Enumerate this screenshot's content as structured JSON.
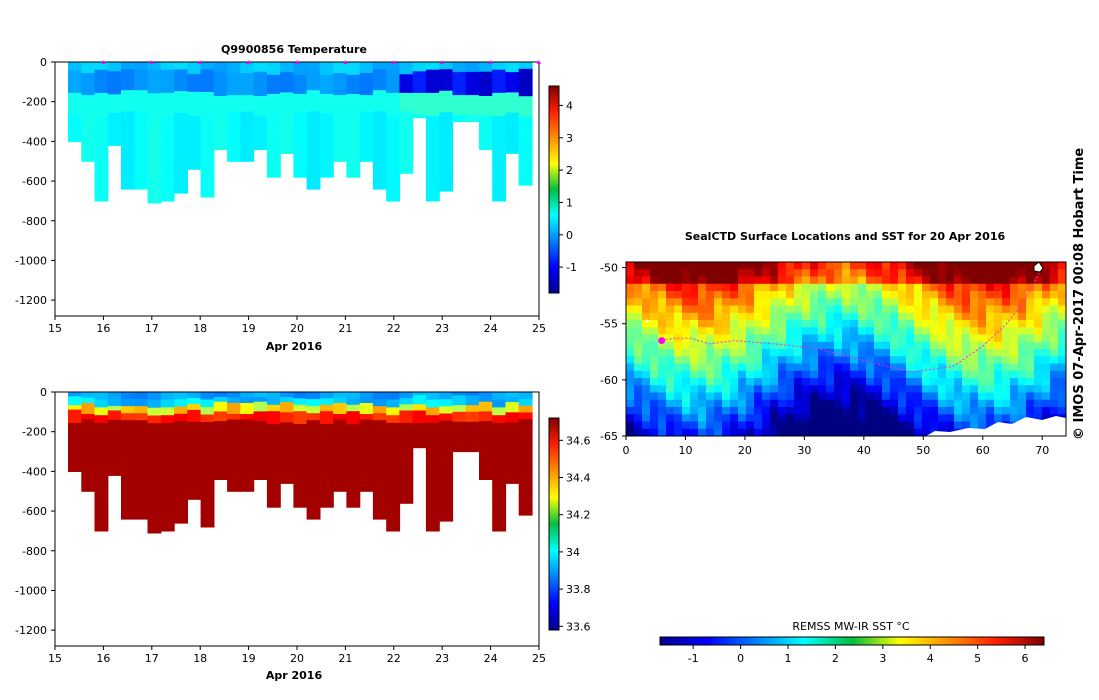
{
  "chart_data": [
    {
      "type": "heatmap",
      "title": "Q9900856  Temperature",
      "xlabel": "Apr 2016",
      "ylabel": "",
      "x_ticks": [
        "15",
        "16",
        "17",
        "18",
        "19",
        "20",
        "21",
        "22",
        "23",
        "24",
        "25"
      ],
      "xlim": [
        15,
        25
      ],
      "y_ticks": [
        "0",
        "-200",
        "-400",
        "-600",
        "-800",
        "-1000",
        "-1200"
      ],
      "ylim": [
        -1280,
        0
      ],
      "profile_days": [
        16,
        17,
        18,
        19,
        20,
        21,
        22,
        23,
        24,
        25
      ],
      "depth_max_profile": [
        -400,
        -500,
        -700,
        -420,
        -640,
        -640,
        -710,
        -700,
        -660,
        -540,
        -680,
        -440,
        -500,
        -500,
        -440,
        -580,
        -460,
        -580,
        -640,
        -580,
        -500,
        -580,
        -500,
        -640,
        -700,
        -560,
        -280,
        -700,
        -650,
        -300,
        -300,
        -440,
        -700,
        -460,
        -620
      ],
      "colorbar": {
        "ticks": [
          "-1",
          "0",
          "1",
          "2",
          "3",
          "4"
        ],
        "range": [
          -1.8,
          4.6
        ],
        "colormap": "jet"
      }
    },
    {
      "type": "heatmap",
      "title": "",
      "xlabel": "Apr 2016",
      "ylabel": "",
      "x_ticks": [
        "15",
        "16",
        "17",
        "18",
        "19",
        "20",
        "21",
        "22",
        "23",
        "24",
        "25"
      ],
      "xlim": [
        15,
        25
      ],
      "y_ticks": [
        "0",
        "-200",
        "-400",
        "-600",
        "-800",
        "-1000",
        "-1200"
      ],
      "ylim": [
        -1280,
        0
      ],
      "colorbar": {
        "ticks": [
          "33.6",
          "33.8",
          "34",
          "34.2",
          "34.4",
          "34.6"
        ],
        "range": [
          33.58,
          34.72
        ],
        "colormap": "jet"
      }
    },
    {
      "type": "heatmap",
      "title": "SealCTD Surface Locations and SST for 20 Apr 2016",
      "xlabel": "",
      "ylabel": "",
      "x_ticks": [
        "0",
        "10",
        "20",
        "30",
        "40",
        "50",
        "60",
        "70"
      ],
      "xlim": [
        0,
        74
      ],
      "y_ticks": [
        "-50",
        "-55",
        "-60",
        "-65"
      ],
      "ylim": [
        -65,
        -49.5
      ],
      "track": [
        {
          "lon": 6,
          "lat": -56.5
        },
        {
          "lon": 8,
          "lat": -56.3
        },
        {
          "lon": 11,
          "lat": -56.3
        },
        {
          "lon": 14,
          "lat": -56.8
        },
        {
          "lon": 18,
          "lat": -56.5
        },
        {
          "lon": 25,
          "lat": -56.8
        },
        {
          "lon": 32,
          "lat": -57.2
        },
        {
          "lon": 40,
          "lat": -58.3
        },
        {
          "lon": 48,
          "lat": -59.3
        },
        {
          "lon": 55,
          "lat": -58.8
        },
        {
          "lon": 60,
          "lat": -57
        },
        {
          "lon": 64,
          "lat": -55
        },
        {
          "lon": 67,
          "lat": -53
        },
        {
          "lon": 69.5,
          "lat": -50.5
        }
      ],
      "current_location": {
        "lon": 6,
        "lat": -56.5
      },
      "colorbar": {
        "label": "REMSS MW-IR SST °C",
        "ticks": [
          "-1",
          "0",
          "1",
          "2",
          "3",
          "4",
          "5",
          "6"
        ],
        "range": [
          -1.7,
          6.4
        ],
        "colormap": "jet"
      }
    }
  ],
  "footer": {
    "credit": "©  IMOS 07-Apr-2017 00:08 Hobart Time"
  },
  "colors": {
    "track": "#ff2bd6",
    "marker": "#ff00ff"
  }
}
